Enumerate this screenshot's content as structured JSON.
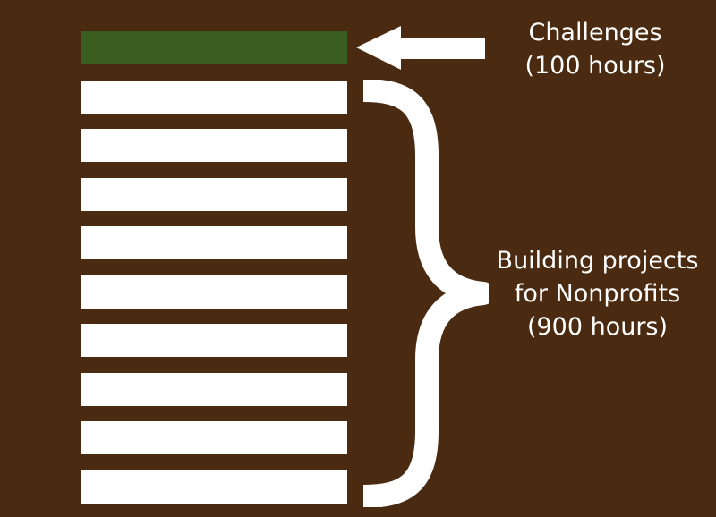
{
  "diagram": {
    "challenges": {
      "title": "Challenges",
      "hours": "(100 hours)",
      "block_count": 1,
      "color": "#3a5e1f"
    },
    "projects": {
      "title_line1": "Building projects",
      "title_line2": "for Nonprofits",
      "hours": "(900 hours)",
      "block_count": 9,
      "color": "#ffffff"
    },
    "background_color": "#4a2b11",
    "icons": [
      "left-arrow-icon",
      "curly-brace-icon"
    ]
  }
}
